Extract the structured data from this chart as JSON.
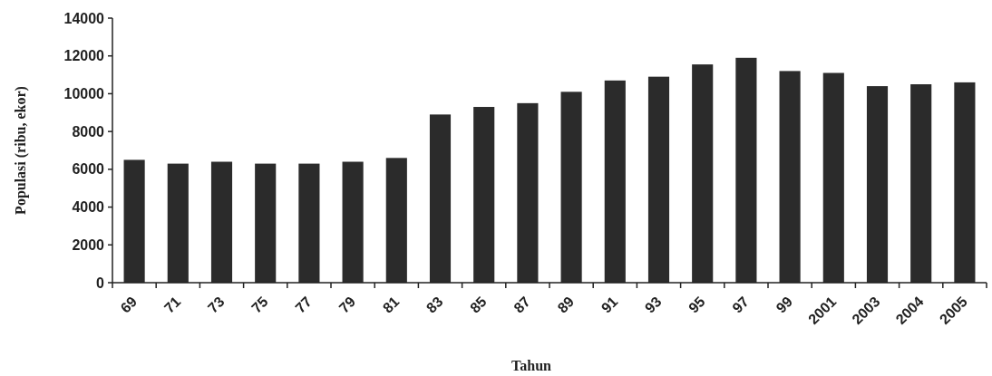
{
  "chart_data": {
    "type": "bar",
    "xlabel": "Tahun",
    "ylabel": "Populasi (ribu, ekor)",
    "categories": [
      "69",
      "71",
      "73",
      "75",
      "77",
      "79",
      "81",
      "83",
      "85",
      "87",
      "89",
      "91",
      "93",
      "95",
      "97",
      "99",
      "2001",
      "2003",
      "2004",
      "2005"
    ],
    "values": [
      6500,
      6300,
      6400,
      6300,
      6300,
      6400,
      6600,
      8900,
      9300,
      9500,
      10100,
      10700,
      10900,
      11550,
      11900,
      11200,
      11100,
      10400,
      10500,
      10600
    ],
    "color": "#2b2b2b",
    "ylim": [
      0,
      14000
    ],
    "yticks": [
      0,
      2000,
      4000,
      6000,
      8000,
      10000,
      12000,
      14000
    ],
    "grid": false
  }
}
